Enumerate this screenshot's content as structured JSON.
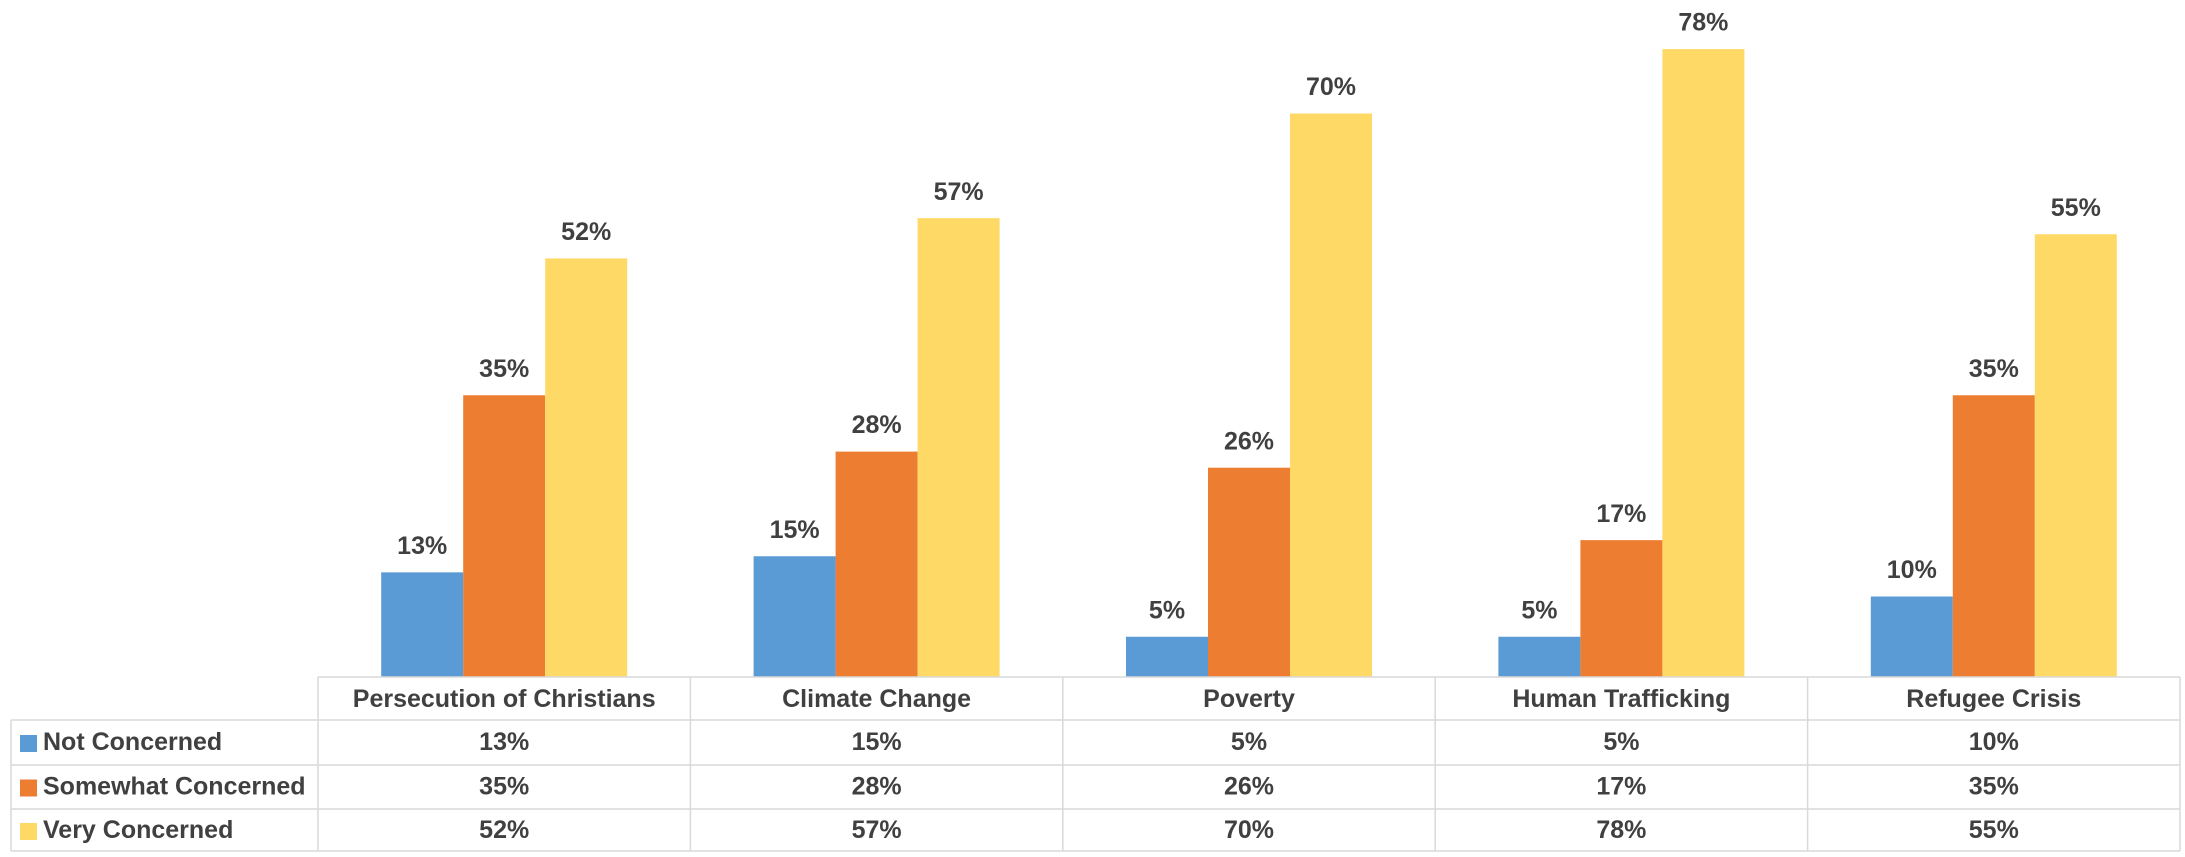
{
  "chart_data": {
    "type": "bar",
    "categories": [
      "Persecution of Christians",
      "Climate Change",
      "Poverty",
      "Human Trafficking",
      "Refugee Crisis"
    ],
    "series": [
      {
        "name": "Not Concerned",
        "color": "#5b9bd5",
        "values": [
          13,
          15,
          5,
          5,
          10
        ],
        "value_labels": [
          "13%",
          "15%",
          "5%",
          "5%",
          "10%"
        ]
      },
      {
        "name": "Somewhat Concerned",
        "color": "#ed7d31",
        "values": [
          35,
          28,
          26,
          17,
          35
        ],
        "value_labels": [
          "35%",
          "28%",
          "26%",
          "17%",
          "35%"
        ]
      },
      {
        "name": "Very Concerned",
        "color": "#ffd966",
        "values": [
          52,
          57,
          70,
          78,
          55
        ],
        "value_labels": [
          "52%",
          "57%",
          "70%",
          "78%",
          "55%"
        ]
      }
    ]
  }
}
